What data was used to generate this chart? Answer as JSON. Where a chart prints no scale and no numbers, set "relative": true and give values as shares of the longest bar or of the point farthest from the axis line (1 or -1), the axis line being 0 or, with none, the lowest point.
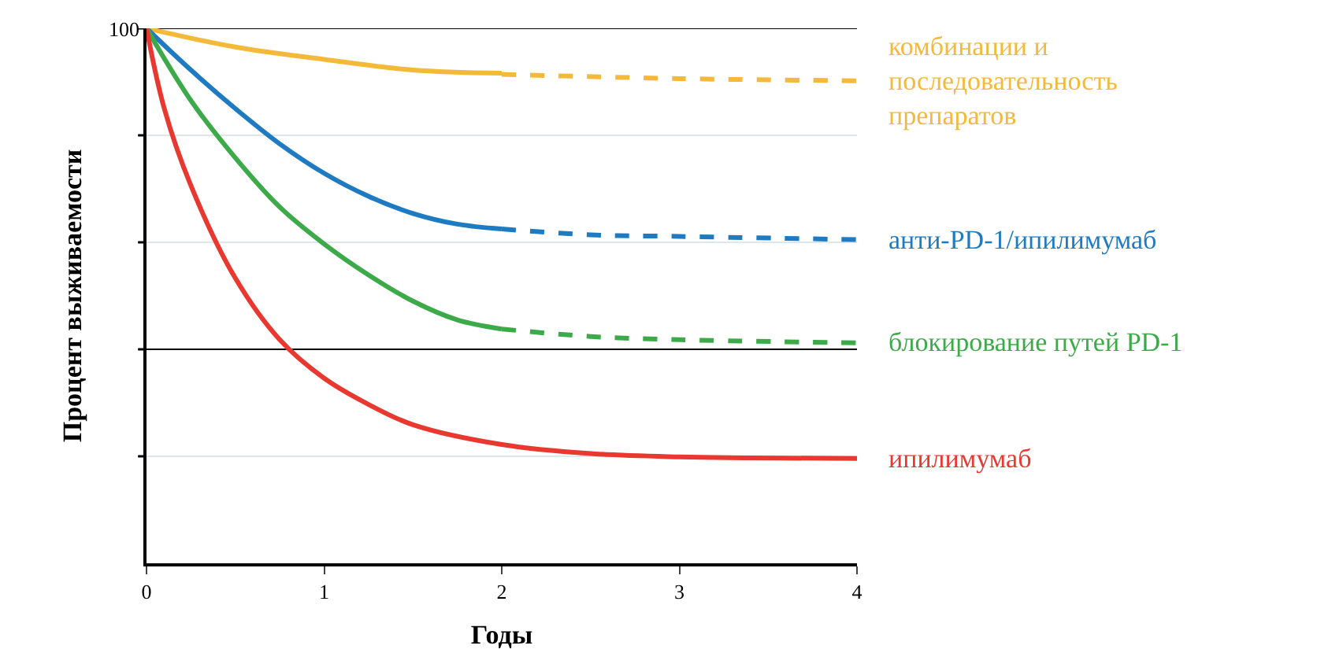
{
  "chart_data": {
    "type": "line",
    "relative": true,
    "xlabel": "Годы",
    "ylabel": "Процент выживаемости",
    "xlim": [
      0,
      4
    ],
    "xticks": [
      0,
      1,
      2,
      3,
      4
    ],
    "annotations": [
      {
        "text": "100",
        "x": 0,
        "y": 1
      }
    ],
    "ref_lines": [
      {
        "axis": "y",
        "value": 1,
        "color": "#000000"
      },
      {
        "axis": "y",
        "value": 0.8,
        "color": "#dde6ea"
      },
      {
        "axis": "y",
        "value": 0.6,
        "color": "#dde6ea"
      },
      {
        "axis": "y",
        "value": 0.4,
        "color": "#000000"
      },
      {
        "axis": "y",
        "value": 0.2,
        "color": "#dde6ea"
      }
    ],
    "series": [
      {
        "color": "#f5b93a",
        "line_style": "solid",
        "x": [
          0,
          0.5,
          1,
          1.5,
          2
        ],
        "values": [
          1,
          0.965,
          0.942,
          0.922,
          0.916
        ]
      },
      {
        "name": "комбинации и\nпоследовательность\nпрепаратов",
        "color": "#f5b93a",
        "line_style": "dashed",
        "x": [
          2,
          3,
          4
        ],
        "values": [
          0.914,
          0.906,
          0.902
        ]
      },
      {
        "color": "#1f7bc1",
        "line_style": "solid",
        "x": [
          0,
          0.25,
          0.5,
          0.75,
          1,
          1.25,
          1.5,
          1.75,
          2
        ],
        "values": [
          1,
          0.922,
          0.85,
          0.784,
          0.729,
          0.686,
          0.654,
          0.634,
          0.625
        ]
      },
      {
        "name": "анти-PD-1/ипилимумаб",
        "color": "#1f7bc1",
        "line_style": "dashed",
        "x": [
          2,
          2.5,
          3,
          4
        ],
        "values": [
          0.625,
          0.614,
          0.611,
          0.605
        ]
      },
      {
        "color": "#3daa4a",
        "line_style": "solid",
        "x": [
          0,
          0.25,
          0.5,
          0.75,
          1,
          1.25,
          1.5,
          1.75,
          2
        ],
        "values": [
          1,
          0.865,
          0.758,
          0.666,
          0.597,
          0.539,
          0.49,
          0.455,
          0.438
        ]
      },
      {
        "name": "блокирование путей PD-1",
        "color": "#3daa4a",
        "line_style": "dashed",
        "x": [
          2,
          2.5,
          3,
          4
        ],
        "values": [
          0.438,
          0.424,
          0.418,
          0.412
        ]
      },
      {
        "name": "ипилимумаб",
        "color": "#e8382f",
        "line_style": "solid",
        "x": [
          0,
          0.1,
          0.25,
          0.5,
          0.75,
          1,
          1.25,
          1.5,
          2,
          2.5,
          3,
          4
        ],
        "values": [
          1,
          0.85,
          0.706,
          0.533,
          0.418,
          0.346,
          0.297,
          0.259,
          0.222,
          0.205,
          0.199,
          0.196
        ]
      }
    ]
  }
}
